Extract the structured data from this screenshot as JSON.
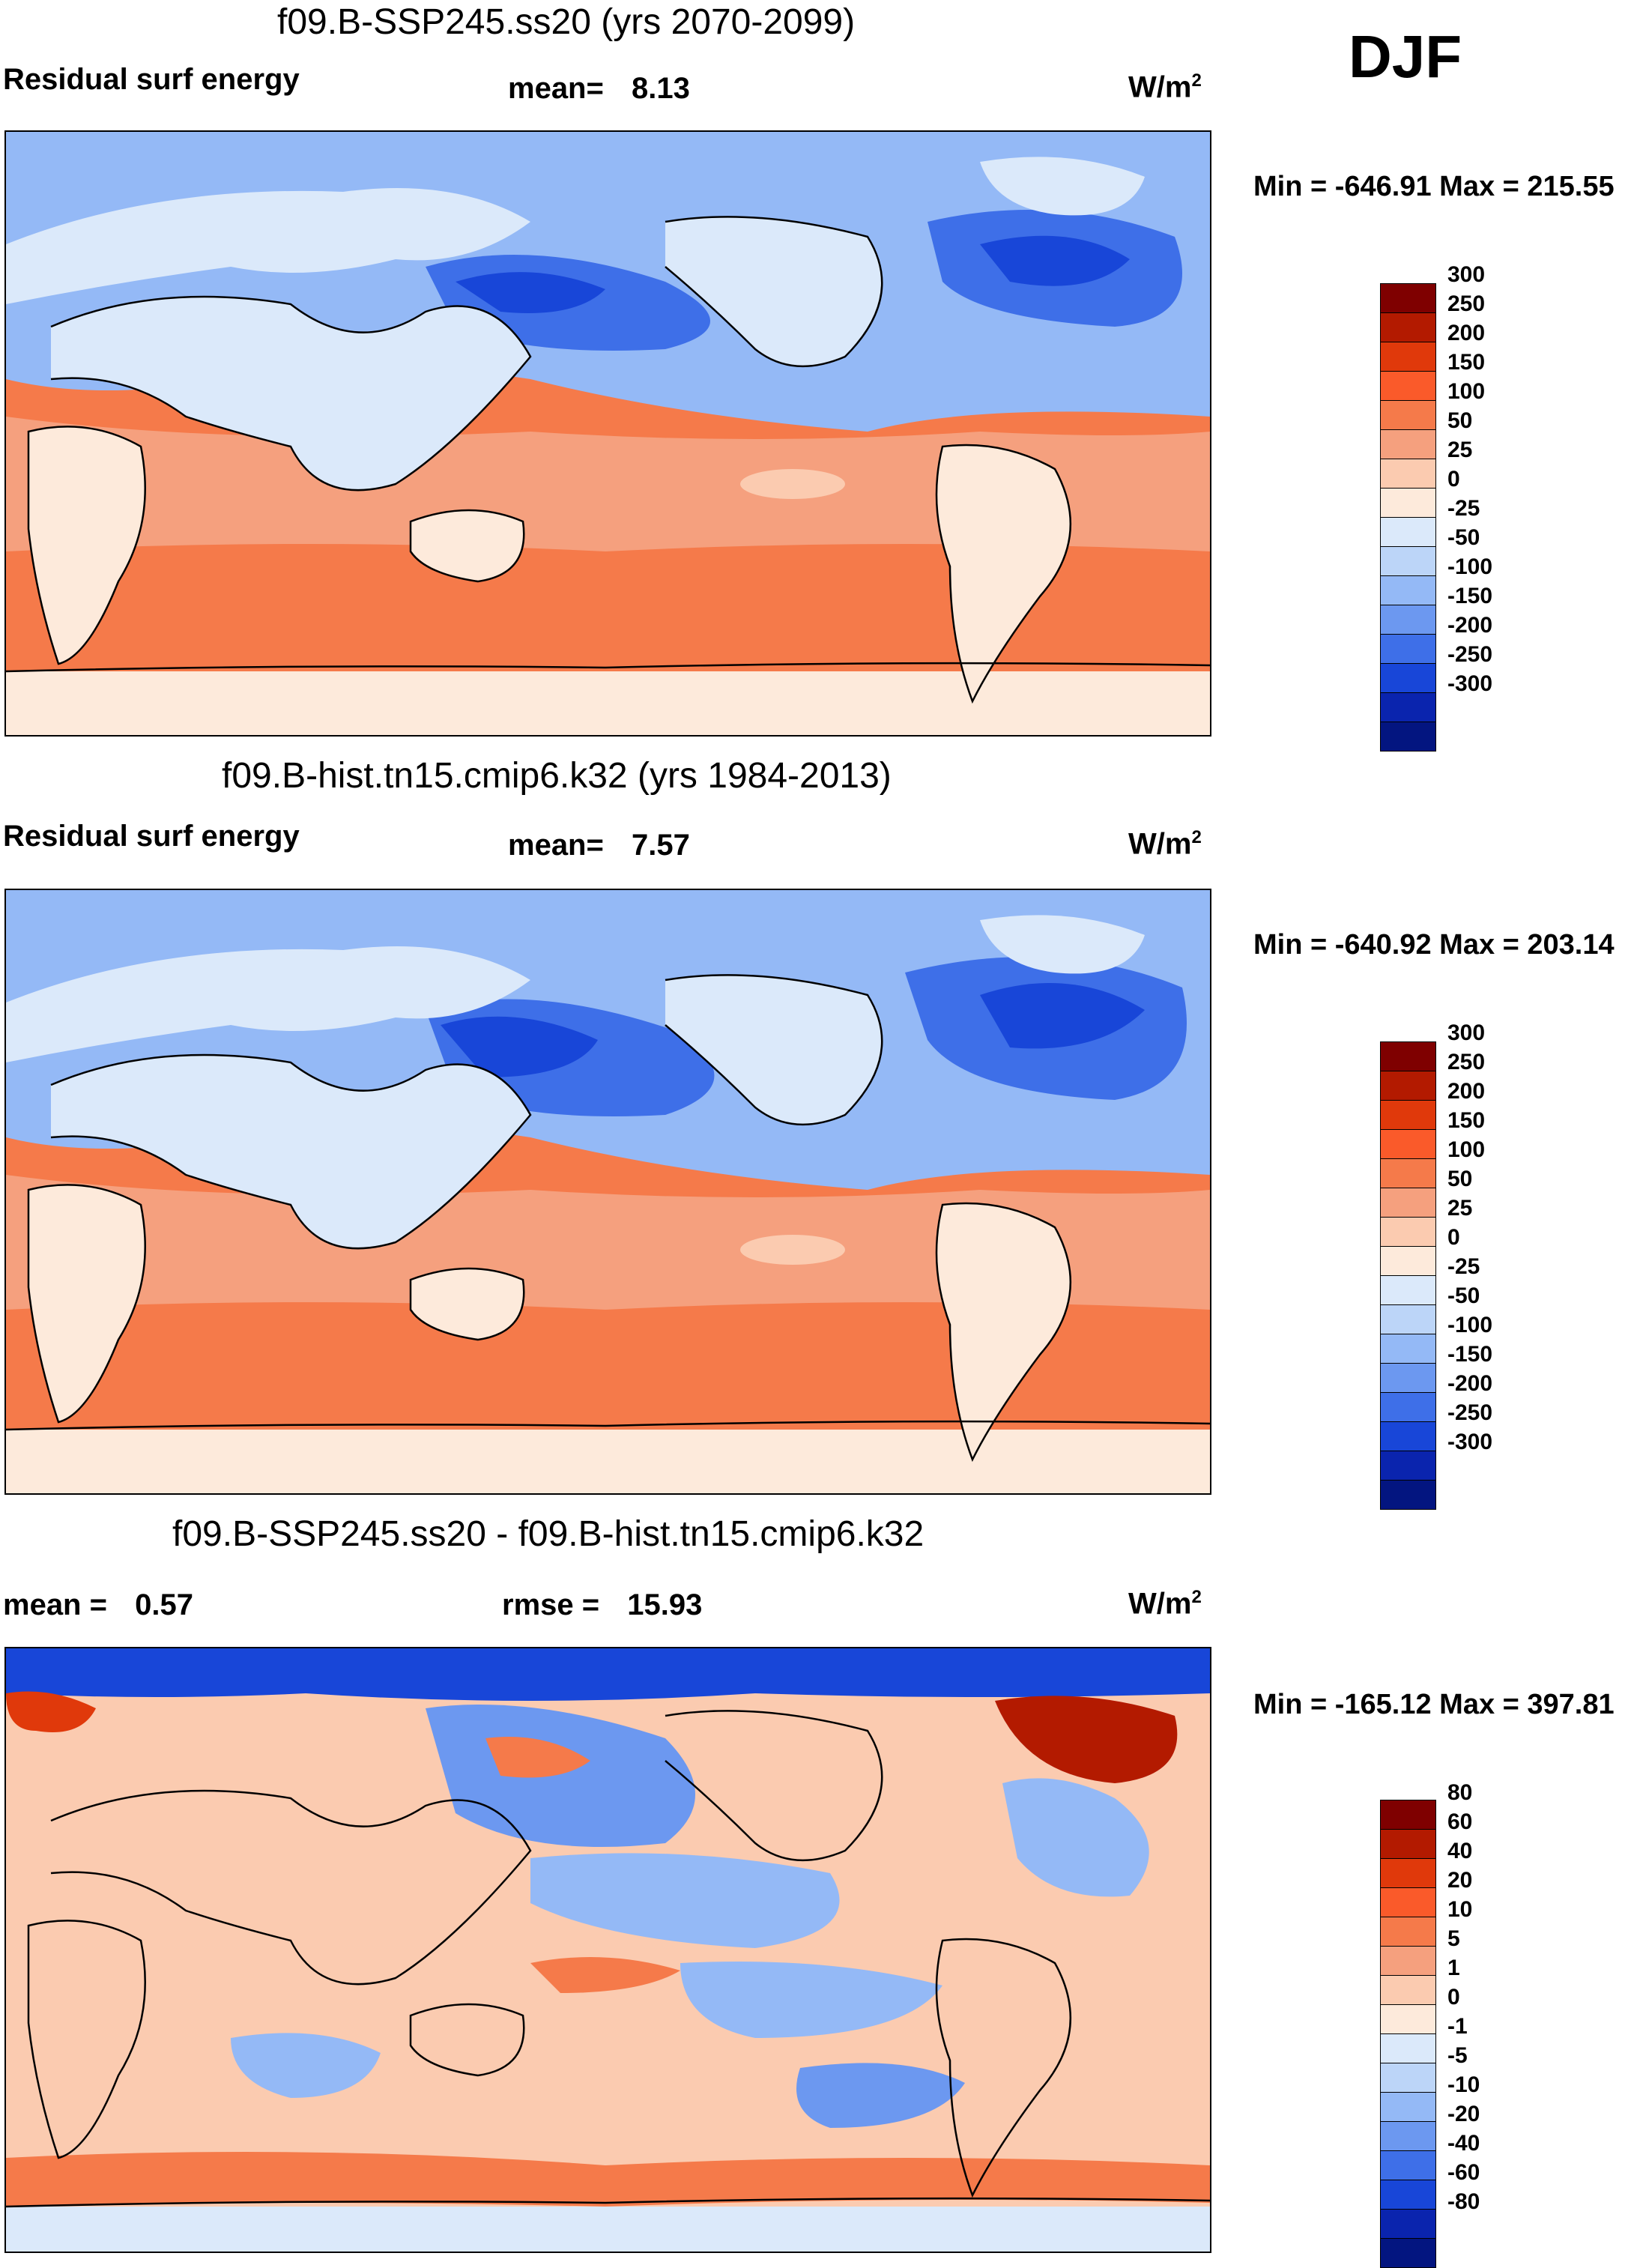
{
  "season": "DJF",
  "panels": [
    {
      "title": "f09.B-SSP245.ss20 (yrs 2070-2099)",
      "left_label": "Residual surf energy",
      "stat_label": "mean=",
      "stat_value": "8.13",
      "units_base": "W/m",
      "units_exp": "2",
      "min_max": "Min = -646.91 Max = 215.55",
      "colorbar_labels": [
        "300",
        "250",
        "200",
        "150",
        "100",
        "50",
        "25",
        "0",
        "-25",
        "-50",
        "-100",
        "-150",
        "-200",
        "-250",
        "-300"
      ]
    },
    {
      "title": "f09.B-hist.tn15.cmip6.k32 (yrs 1984-2013)",
      "left_label": "Residual surf energy",
      "stat_label": "mean=",
      "stat_value": "7.57",
      "units_base": "W/m",
      "units_exp": "2",
      "min_max": "Min = -640.92 Max = 203.14",
      "colorbar_labels": [
        "300",
        "250",
        "200",
        "150",
        "100",
        "50",
        "25",
        "0",
        "-25",
        "-50",
        "-100",
        "-150",
        "-200",
        "-250",
        "-300"
      ]
    },
    {
      "title": "f09.B-SSP245.ss20 - f09.B-hist.tn15.cmip6.k32",
      "left_label_prefix": "mean =",
      "left_label_value": "0.57",
      "stat_label": "rmse =",
      "stat_value": "15.93",
      "units_base": "W/m",
      "units_exp": "2",
      "min_max": "Min = -165.12 Max = 397.81",
      "colorbar_labels": [
        "80",
        "60",
        "40",
        "20",
        "10",
        "5",
        "1",
        "0",
        "-1",
        "-5",
        "-10",
        "-20",
        "-40",
        "-60",
        "-80"
      ]
    }
  ],
  "colorbar_colors": [
    "#7f0000",
    "#b31a00",
    "#e0390b",
    "#fa5a2a",
    "#f57a4a",
    "#f5a07e",
    "#fbcbb0",
    "#fdeadb",
    "#dbe9fa",
    "#bcd5f8",
    "#94b9f6",
    "#6c98f0",
    "#3e6fe8",
    "#1846d8",
    "#0a24ae",
    "#031580"
  ],
  "map_colors": {
    "ocean_warm": "#f57a4a",
    "ocean_mid": "#f5a07e",
    "land": "#fdeadb",
    "land_cold": "#dbe9fa",
    "cold_ocean": "#6c98f0",
    "deep_cold": "#1846d8"
  }
}
